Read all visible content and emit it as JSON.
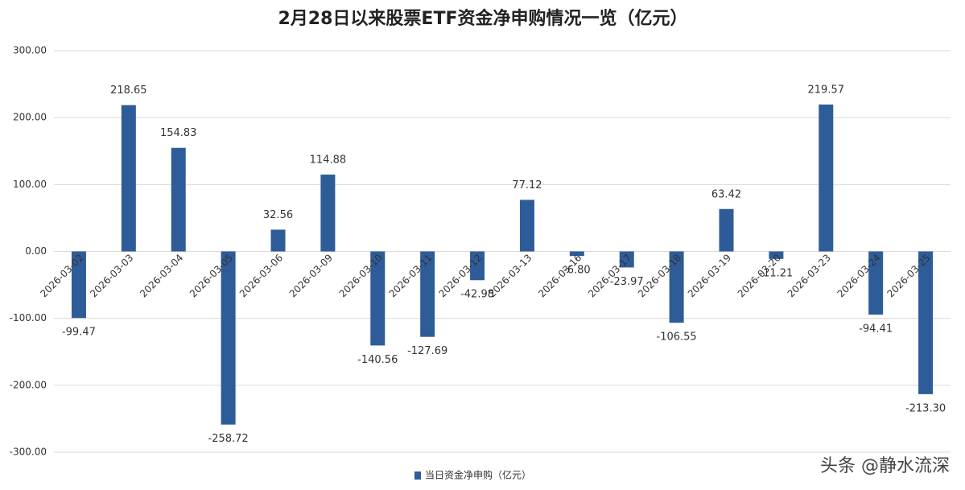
{
  "chart_data": {
    "type": "bar",
    "title": "2月28日以来股票ETF资金净申购情况一览（亿元）",
    "categories": [
      "2026-03-02",
      "2026-03-03",
      "2026-03-04",
      "2026-03-05",
      "2026-03-06",
      "2026-03-09",
      "2026-03-10",
      "2026-03-11",
      "2026-03-12",
      "2026-03-13",
      "2026-03-16",
      "2026-03-17",
      "2026-03-18",
      "2026-03-19",
      "2026-03-20",
      "2026-03-23",
      "2026-03-24",
      "2026-03-25"
    ],
    "series": [
      {
        "name": "当日资金净申购（亿元）",
        "color": "#2e5c99",
        "values": [
          -99.47,
          218.65,
          154.83,
          -258.72,
          32.56,
          114.88,
          -140.56,
          -127.69,
          -42.98,
          77.12,
          -6.8,
          -23.97,
          -106.55,
          63.42,
          -11.21,
          219.57,
          -94.41,
          -213.3
        ],
        "value_labels": [
          "-99.47",
          "218.65",
          "154.83",
          "-258.72",
          "32.56",
          "114.88",
          "-140.56",
          "-127.69",
          "-42.98",
          "77.12",
          "-6.80",
          "-23.97",
          "-106.55",
          "63.42",
          "-11.21",
          "219.57",
          "-94.41",
          "-213.30"
        ]
      }
    ],
    "ylim": [
      -300,
      300
    ],
    "yticks": [
      {
        "value": -300,
        "label": "-300.00"
      },
      {
        "value": -200,
        "label": "-200.00"
      },
      {
        "value": -100,
        "label": "-100.00"
      },
      {
        "value": 0,
        "label": "0.00"
      },
      {
        "value": 100,
        "label": "100.00"
      },
      {
        "value": 200,
        "label": "200.00"
      },
      {
        "value": 300,
        "label": "300.00"
      }
    ],
    "grid": true,
    "legend": "bottom",
    "watermark": "头条 @静水流深"
  }
}
